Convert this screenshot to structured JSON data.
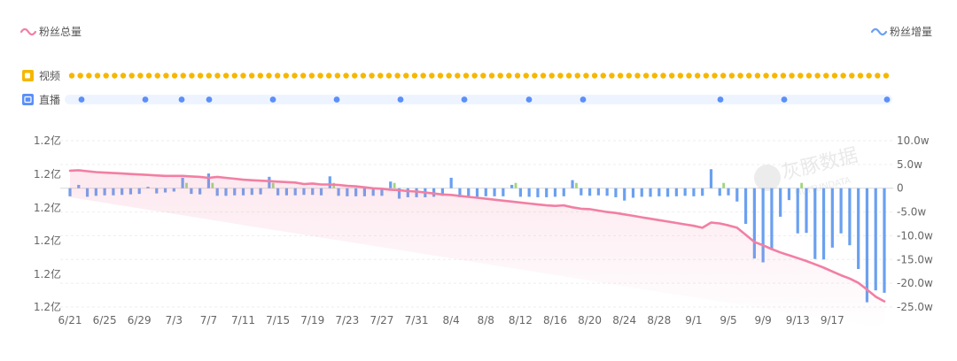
{
  "legend": {
    "total_label": "粉丝总量",
    "total_color": "#f27fa3",
    "gain_label": "粉丝增量",
    "gain_color": "#6aa0f0"
  },
  "event_rows": {
    "video_label": "视频",
    "video_icon": "video-icon",
    "video_color": "#f5b700",
    "live_label": "直播",
    "live_icon": "live-icon",
    "live_color": "#5b8ff9",
    "live_track_color": "#eef4ff",
    "live_dates": [
      "6/22",
      "6/29",
      "7/3",
      "7/6",
      "7/13",
      "7/20",
      "7/27",
      "8/3",
      "8/10",
      "8/16",
      "9/1",
      "9/8"
    ]
  },
  "watermark": {
    "text": "灰豚数据",
    "sub": "HUITUNDATA"
  },
  "chart_data": {
    "type": "bar+line",
    "x_ticks": [
      "6/21",
      "6/25",
      "6/29",
      "7/3",
      "7/7",
      "7/11",
      "7/15",
      "7/19",
      "7/23",
      "7/27",
      "7/31",
      "8/4",
      "8/8",
      "8/12",
      "8/16",
      "8/20",
      "8/24",
      "8/28",
      "9/1",
      "9/5",
      "9/9",
      "9/13",
      "9/17"
    ],
    "left_axis_ticks": [
      "1.2亿",
      "1.2亿",
      "1.2亿",
      "1.2亿",
      "1.2亿",
      "1.2亿"
    ],
    "right_axis_ticks": [
      "10.0w",
      "5.0w",
      "0",
      "-5.0w",
      "-10.0w",
      "-15.0w",
      "-20.0w",
      "-25.0w"
    ],
    "right_ylim": [
      -25,
      10
    ],
    "right_unit": "w",
    "series": [
      {
        "name": "粉丝增量",
        "unit": "w",
        "values": [
          -1.7,
          0.7,
          -1.8,
          -1.6,
          -1.5,
          -1.5,
          -1.4,
          -1.3,
          -1.2,
          0.3,
          -1.1,
          -0.9,
          -0.7,
          2.2,
          -1.2,
          -1.3,
          3.1,
          -1.6,
          -1.6,
          -1.5,
          -1.5,
          -1.4,
          -1.3,
          2.4,
          -1.5,
          -1.5,
          -1.5,
          -1.4,
          -1.4,
          -1.5,
          2.5,
          -1.6,
          -1.7,
          -1.7,
          -1.7,
          -1.6,
          -1.6,
          1.4,
          -2.2,
          -1.9,
          -1.9,
          -1.9,
          -1.8,
          -1.6,
          2.2,
          -1.9,
          -1.8,
          -1.8,
          -1.7,
          -1.7,
          -1.7,
          0.7,
          -1.8,
          -1.8,
          -1.9,
          -1.9,
          -1.8,
          -1.7,
          1.7,
          -1.5,
          -1.6,
          -1.5,
          -1.6,
          -1.9,
          -2.6,
          -2.0,
          -1.8,
          -1.8,
          -1.7,
          -1.8,
          -1.7,
          -1.6,
          -1.7,
          -1.6,
          4.0,
          -1.6,
          -1.5,
          -2.8,
          -7.5,
          -14.8,
          -15.6,
          -13.0,
          -6.0,
          -2.5,
          -9.5,
          -9.4,
          -14.9,
          -15.0,
          -12.5,
          -9.5,
          -12.0,
          -17.0,
          -24.0,
          -21.5,
          -22.0
        ],
        "color": "#6aa0f0",
        "positive_near_flags_color": "#9fd67c"
      },
      {
        "name": "粉丝总量",
        "values_note": "",
        "color": "#f27fa3",
        "shape": [
          3.5,
          3.6,
          3.4,
          3.2,
          3.1,
          3.0,
          2.9,
          2.8,
          2.7,
          2.6,
          2.5,
          2.4,
          2.4,
          2.4,
          2.3,
          2.2,
          2.0,
          2.2,
          2.0,
          1.8,
          1.6,
          1.5,
          1.4,
          1.3,
          1.2,
          1.1,
          1.0,
          0.7,
          0.8,
          0.6,
          0.6,
          0.5,
          0.3,
          0.2,
          0.0,
          -0.2,
          -0.3,
          -0.5,
          -0.6,
          -0.8,
          -0.9,
          -1.1,
          -1.3,
          -1.5,
          -1.6,
          -1.8,
          -2.0,
          -2.2,
          -2.4,
          -2.6,
          -2.8,
          -3.0,
          -3.2,
          -3.4,
          -3.6,
          -3.8,
          -3.9,
          -3.8,
          -4.2,
          -4.5,
          -4.6,
          -4.9,
          -5.2,
          -5.4,
          -5.7,
          -6.0,
          -6.3,
          -6.6,
          -6.9,
          -7.2,
          -7.5,
          -7.8,
          -8.1,
          -8.5,
          -7.4,
          -7.6,
          -8.0,
          -8.5,
          -10.0,
          -11.5,
          -12.2,
          -13.0,
          -13.7,
          -14.3,
          -14.9,
          -15.5,
          -16.2,
          -16.9,
          -17.7,
          -18.5,
          -19.2,
          -20.1,
          -21.5,
          -23.0,
          -24.0
        ]
      }
    ],
    "grid": true,
    "legend_position": "top-left and top-right"
  }
}
